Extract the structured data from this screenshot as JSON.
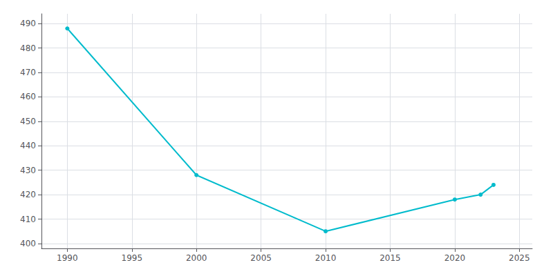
{
  "chart_data": {
    "type": "line",
    "x": [
      1990,
      2000,
      2010,
      2020,
      2022,
      2023
    ],
    "values": [
      488,
      428,
      405,
      418,
      420,
      424
    ],
    "color": "#00BBCC",
    "marker": "circle",
    "xlim": [
      1988,
      2026
    ],
    "ylim": [
      398,
      494
    ],
    "xticks": [
      1990,
      1995,
      2000,
      2005,
      2010,
      2015,
      2020,
      2025
    ],
    "yticks": [
      400,
      410,
      420,
      430,
      440,
      450,
      460,
      470,
      480,
      490
    ],
    "grid": true
  }
}
